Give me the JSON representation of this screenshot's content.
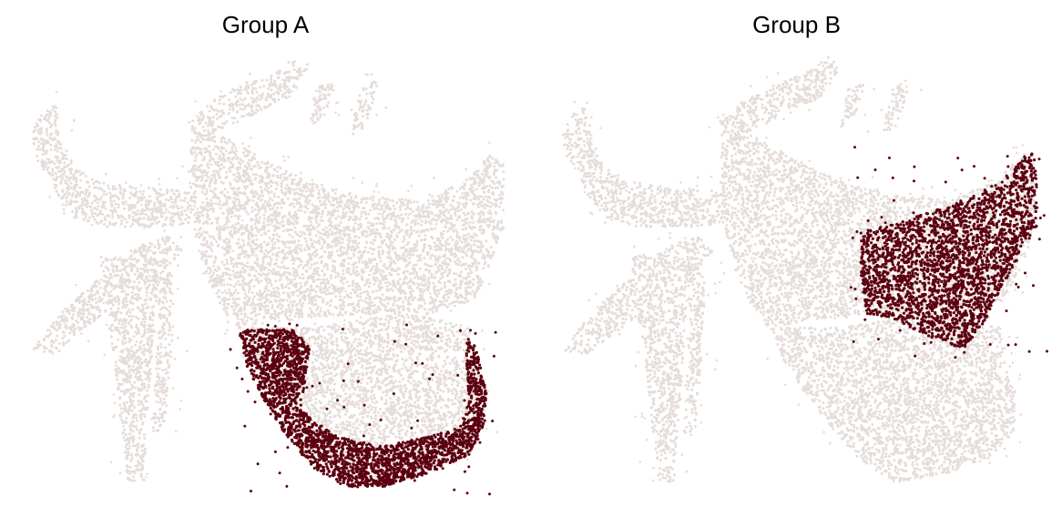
{
  "colors": {
    "background_points": "#e5ddd9",
    "highlight_points": "#5c0010"
  },
  "chart_data": [
    {
      "type": "scatter",
      "title": "Group A",
      "axes_visible": false,
      "grid": false,
      "legend": "none",
      "series": [
        {
          "role": "background",
          "color": "#e5ddd9"
        },
        {
          "role": "highlighted",
          "color": "#5c0010"
        }
      ]
    },
    {
      "type": "scatter",
      "title": "Group B",
      "axes_visible": false,
      "grid": false,
      "legend": "none",
      "series": [
        {
          "role": "background",
          "color": "#e5ddd9"
        },
        {
          "role": "highlighted",
          "color": "#5c0010"
        }
      ]
    }
  ]
}
